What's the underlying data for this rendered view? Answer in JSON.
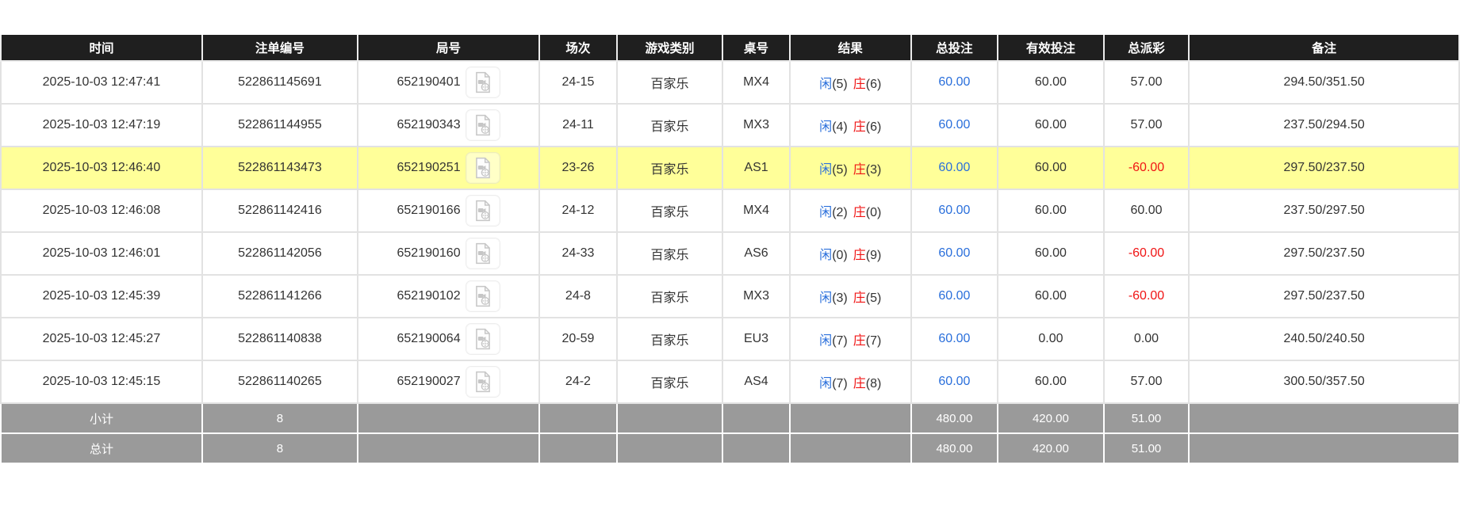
{
  "table": {
    "columns": [
      {
        "key": "time",
        "label": "时间"
      },
      {
        "key": "bet_id",
        "label": "注单编号"
      },
      {
        "key": "round_no",
        "label": "局号"
      },
      {
        "key": "session",
        "label": "场次"
      },
      {
        "key": "game_type",
        "label": "游戏类别"
      },
      {
        "key": "table_code",
        "label": "桌号"
      },
      {
        "key": "result",
        "label": "结果"
      },
      {
        "key": "total_bet",
        "label": "总投注"
      },
      {
        "key": "valid_bet",
        "label": "有效投注"
      },
      {
        "key": "payout",
        "label": "总派彩"
      },
      {
        "key": "remark",
        "label": "备注"
      }
    ],
    "rows": [
      {
        "time": "2025-10-03 12:47:41",
        "bet_id": "522861145691",
        "round_no": "652190401",
        "session": "24-15",
        "game_type": "百家乐",
        "table_code": "MX4",
        "result_player": "闲",
        "result_player_value": "(5)",
        "result_banker": "庄",
        "result_banker_value": "(6)",
        "total_bet": "60.00",
        "valid_bet": "60.00",
        "payout": "57.00",
        "remark": "294.50/351.50",
        "highlighted": false
      },
      {
        "time": "2025-10-03 12:47:19",
        "bet_id": "522861144955",
        "round_no": "652190343",
        "session": "24-11",
        "game_type": "百家乐",
        "table_code": "MX3",
        "result_player": "闲",
        "result_player_value": "(4)",
        "result_banker": "庄",
        "result_banker_value": "(6)",
        "total_bet": "60.00",
        "valid_bet": "60.00",
        "payout": "57.00",
        "remark": "237.50/294.50",
        "highlighted": false
      },
      {
        "time": "2025-10-03 12:46:40",
        "bet_id": "522861143473",
        "round_no": "652190251",
        "session": "23-26",
        "game_type": "百家乐",
        "table_code": "AS1",
        "result_player": "闲",
        "result_player_value": "(5)",
        "result_banker": "庄",
        "result_banker_value": "(3)",
        "total_bet": "60.00",
        "valid_bet": "60.00",
        "payout": "-60.00",
        "remark": "297.50/237.50",
        "highlighted": true
      },
      {
        "time": "2025-10-03 12:46:08",
        "bet_id": "522861142416",
        "round_no": "652190166",
        "session": "24-12",
        "game_type": "百家乐",
        "table_code": "MX4",
        "result_player": "闲",
        "result_player_value": "(2)",
        "result_banker": "庄",
        "result_banker_value": "(0)",
        "total_bet": "60.00",
        "valid_bet": "60.00",
        "payout": "60.00",
        "remark": "237.50/297.50",
        "highlighted": false
      },
      {
        "time": "2025-10-03 12:46:01",
        "bet_id": "522861142056",
        "round_no": "652190160",
        "session": "24-33",
        "game_type": "百家乐",
        "table_code": "AS6",
        "result_player": "闲",
        "result_player_value": "(0)",
        "result_banker": "庄",
        "result_banker_value": "(9)",
        "total_bet": "60.00",
        "valid_bet": "60.00",
        "payout": "-60.00",
        "remark": "297.50/237.50",
        "highlighted": false
      },
      {
        "time": "2025-10-03 12:45:39",
        "bet_id": "522861141266",
        "round_no": "652190102",
        "session": "24-8",
        "game_type": "百家乐",
        "table_code": "MX3",
        "result_player": "闲",
        "result_player_value": "(3)",
        "result_banker": "庄",
        "result_banker_value": "(5)",
        "total_bet": "60.00",
        "valid_bet": "60.00",
        "payout": "-60.00",
        "remark": "297.50/237.50",
        "highlighted": false
      },
      {
        "time": "2025-10-03 12:45:27",
        "bet_id": "522861140838",
        "round_no": "652190064",
        "session": "20-59",
        "game_type": "百家乐",
        "table_code": "EU3",
        "result_player": "闲",
        "result_player_value": "(7)",
        "result_banker": "庄",
        "result_banker_value": "(7)",
        "total_bet": "60.00",
        "valid_bet": "0.00",
        "payout": "0.00",
        "remark": "240.50/240.50",
        "highlighted": false
      },
      {
        "time": "2025-10-03 12:45:15",
        "bet_id": "522861140265",
        "round_no": "652190027",
        "session": "24-2",
        "game_type": "百家乐",
        "table_code": "AS4",
        "result_player": "闲",
        "result_player_value": "(7)",
        "result_banker": "庄",
        "result_banker_value": "(8)",
        "total_bet": "60.00",
        "valid_bet": "60.00",
        "payout": "57.00",
        "remark": "300.50/357.50",
        "highlighted": false
      }
    ],
    "summary_rows": [
      {
        "label": "小计",
        "count": "8",
        "total_bet": "480.00",
        "valid_bet": "420.00",
        "payout": "51.00"
      },
      {
        "label": "总计",
        "count": "8",
        "total_bet": "480.00",
        "valid_bet": "420.00",
        "payout": "51.00"
      }
    ]
  },
  "colors": {
    "header_bg": "#1f1f1f",
    "highlight_row_bg": "#ffff99",
    "summary_row_bg": "#9a9a9a",
    "player_blue": "#2a6fdb",
    "banker_red": "#f01414",
    "negative_red": "#f01414",
    "bet_link_blue": "#2a6fdb"
  },
  "icons": {
    "round_video": "video-file-icon"
  }
}
